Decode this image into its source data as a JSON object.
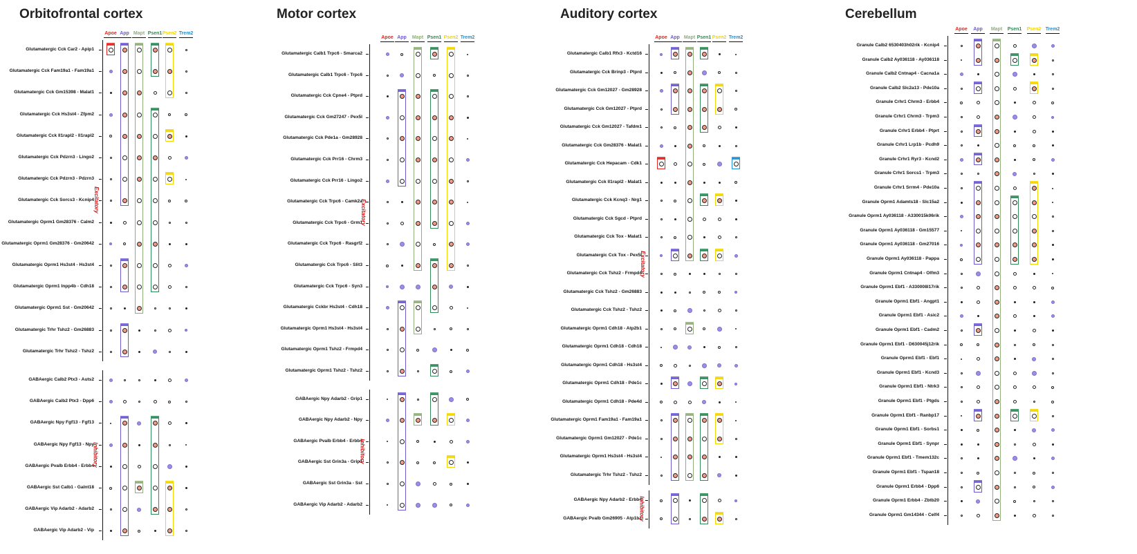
{
  "genes": [
    "Apoe",
    "App",
    "Mapt",
    "Psen1",
    "Psen2",
    "Trem2"
  ],
  "gene_colors": {
    "Apoe": "#e0261f",
    "App": "#6a5acd",
    "Mapt": "#8fae7a",
    "Psen1": "#2e8b57",
    "Psen2": "#f2d600",
    "Trem2": "#1f8fd6"
  },
  "chart_data": [
    {
      "type": "dot-matrix",
      "title": "Orbitofrontal cortex",
      "columns": [
        "Apoe",
        "App",
        "Mapt",
        "Psen1",
        "Psen2",
        "Trem2"
      ],
      "groups": [
        {
          "label": "Excitatory",
          "rows": [
            "Glutamatergic Cck Car2 - Apip1",
            "Glutamatergic Cck Fam19a1 - Fam19a1",
            "Glutamatergic Cck Gm15398 - Malat1",
            "Glutamatergic Cck Hs3st4 - Zfpm2",
            "Glutamatergic Cck Il1rapl2 - Il1rapl2",
            "Glutamatergic Cck Pdzrn3 - Lingo2",
            "Glutamatergic Cck Pdzrn3 - Pdzrn3",
            "Glutamatergic Cck Sorcs3 - Kcnip4",
            "Glutamatergic Oprm1 Gm28376 - Calm2",
            "Glutamatergic Oprm1 Gm28376 - Gm20642",
            "Glutamatergic Oprm1 Hs3st4 - Hs3st4",
            "Glutamatergic Oprm1 Inpp4b - Cdh18",
            "Glutamatergic Oprm1 Sst - Gm20642",
            "Glutamatergic Trhr Tshz2 - Gm26883",
            "Glutamatergic Trhr Tshz2 - Tshz2"
          ]
        },
        {
          "label": "Inhibitory",
          "rows": [
            "GABAergic Calb2 Ptx3 - Auts2",
            "GABAergic Calb2 Ptx3 - Dpp6",
            "GABAergic Npy Fgf13 - Fgf13",
            "GABAergic Npy Fgf13 - Npy",
            "GABAergic Pvalb Erbb4 - Erbb4",
            "GABAergic Sst Calb1 - Galnt18",
            "GABAergic Vip Adarb2 - Adarb2",
            "GABAergic Vip Adarb2 - Vip"
          ]
        }
      ],
      "highlights": [
        {
          "gene": "Apoe",
          "from": 0,
          "to": 0
        },
        {
          "gene": "App",
          "from": 0,
          "to": 7
        },
        {
          "gene": "Mapt",
          "from": 0,
          "to": 12
        },
        {
          "gene": "Psen1",
          "from": 0,
          "to": 1
        },
        {
          "gene": "Psen1",
          "from": 3,
          "to": 11
        },
        {
          "gene": "Psen2",
          "from": 0,
          "to": 2
        },
        {
          "gene": "Psen2",
          "from": 6,
          "to": 6
        },
        {
          "gene": "Psen2",
          "from": 4,
          "to": 4
        },
        {
          "gene": "App",
          "from": 10,
          "to": 11
        },
        {
          "gene": "App",
          "from": 13,
          "to": 14
        },
        {
          "gene": "App",
          "from": 17,
          "to": 22
        },
        {
          "gene": "Psen1",
          "from": 17,
          "to": 21
        },
        {
          "gene": "Mapt",
          "from": 20,
          "to": 20
        },
        {
          "gene": "Psen2",
          "from": 20,
          "to": 22
        }
      ]
    },
    {
      "type": "dot-matrix",
      "title": "Motor cortex",
      "columns": [
        "Apoe",
        "App",
        "Mapt",
        "Psen1",
        "Psen2",
        "Trem2"
      ],
      "groups": [
        {
          "label": "Excitatory",
          "rows": [
            "Glutamatergic Calb1 Trpc6 - Smarca2",
            "Glutamatergic Calb1 Trpc6 - Trpc6",
            "Glutamatergic Cck Cpne4 - Ptprd",
            "Glutamatergic Cck Gm27247 - Pex5l",
            "Glutamatergic Cck Pde1a - Gm28928",
            "Glutamatergic Cck Prr16 - Chrm3",
            "Glutamatergic Cck Prr16 - Lingo2",
            "Glutamatergic Cck Trpc6 - Camk2a",
            "Glutamatergic Cck Trpc6 - Grm1",
            "Glutamatergic Cck Trpc6 - Rasgrf2",
            "Glutamatergic Cck Trpc6 - Slit3",
            "Glutamatergic Cck Trpc6 - Syn3",
            "Glutamatergic Cckbr Hs3st4 - Cdh18",
            "Glutamatergic Oprm1 Hs3st4 - Hs3st4",
            "Glutamatergic Oprm1 Tshz2 - Frmpd4",
            "Glutamatergic Oprm1 Tshz2 - Tshz2"
          ]
        },
        {
          "label": "Inhibitory",
          "rows": [
            "GABAergic Npy Adarb2 - Grip1",
            "GABAergic Npy Adarb2 - Npy",
            "GABAergic Pvalb Erbb4 - Erbb4",
            "GABAergic Sst Grin3a - Grip1",
            "GABAergic Sst Grin3a - Sst",
            "GABAergic Vip Adarb2 - Adarb2"
          ]
        }
      ],
      "highlights": [
        {
          "gene": "Mapt",
          "from": 0,
          "to": 10
        },
        {
          "gene": "Psen1",
          "from": 0,
          "to": 0
        },
        {
          "gene": "Psen2",
          "from": 0,
          "to": 10
        },
        {
          "gene": "App",
          "from": 2,
          "to": 6
        },
        {
          "gene": "Psen1",
          "from": 2,
          "to": 8
        },
        {
          "gene": "Psen1",
          "from": 10,
          "to": 12
        },
        {
          "gene": "App",
          "from": 12,
          "to": 15
        },
        {
          "gene": "Mapt",
          "from": 12,
          "to": 13
        },
        {
          "gene": "Psen1",
          "from": 15,
          "to": 15
        },
        {
          "gene": "App",
          "from": 16,
          "to": 21
        },
        {
          "gene": "Psen1",
          "from": 16,
          "to": 17
        },
        {
          "gene": "Mapt",
          "from": 17,
          "to": 17
        },
        {
          "gene": "Psen2",
          "from": 17,
          "to": 17
        },
        {
          "gene": "Psen2",
          "from": 19,
          "to": 19
        }
      ]
    },
    {
      "type": "dot-matrix",
      "title": "Auditory cortex",
      "columns": [
        "Apoe",
        "App",
        "Mapt",
        "Psen1",
        "Psen2",
        "Trem2"
      ],
      "groups": [
        {
          "label": "Excitatory",
          "rows": [
            "Glutamatergic Calb1 Rfx3 - Kctd16",
            "Glutamatergic Cck Brinp3 - Ptprd",
            "Glutamatergic Cck Gm12027 - Gm28928",
            "Glutamatergic Cck Gm12027 - Ptprd",
            "Glutamatergic Cck Gm12027 - Tafdm1",
            "Glutamatergic Cck Gm28376 - Malat1",
            "Glutamatergic Cck Hepacam - Cdk1",
            "Glutamatergic Cck Il1rapl2 - Malat1",
            "Glutamatergic Cck Kcnq3 - Nrg1",
            "Glutamatergic Cck Sgcd - Ptprd",
            "Glutamatergic Cck Tox - Malat1",
            "Glutamatergic Cck Tox - Pex5l",
            "Glutamatergic Cck Tshz2 - Frmpd4",
            "Glutamatergic Cck Tshz2 - Gm26883",
            "Glutamatergic Cck Tshz2 - Tshz2",
            "Glutamatergic Oprm1 Cdh18 - Atp2b1",
            "Glutamatergic Oprm1 Cdh18 - Cdh18",
            "Glutamatergic Oprm1 Cdh18 - Hs3st4",
            "Glutamatergic Oprm1 Cdh18 - Pde1c",
            "Glutamatergic Oprm1 Cdh18 - Pde4d",
            "Glutamatergic Oprm1 Fam19a1 - Fam19a1",
            "Glutamatergic Oprm1 Gm12027 - Pde1c",
            "Glutamatergic Oprm1 Hs3st4 - Hs3st4",
            "Glutamatergic Trhr Tshz2 - Tshz2"
          ]
        },
        {
          "label": "Inhibitory",
          "rows": [
            "GABAergic Npy Adarb2 - Erbb4",
            "GABAergic Pvalb Gm26905 - Atp1b1"
          ]
        }
      ],
      "highlights": [
        {
          "gene": "App",
          "from": 0,
          "to": 0
        },
        {
          "gene": "Mapt",
          "from": 0,
          "to": 11
        },
        {
          "gene": "Psen1",
          "from": 0,
          "to": 0
        },
        {
          "gene": "App",
          "from": 2,
          "to": 3
        },
        {
          "gene": "Psen1",
          "from": 2,
          "to": 4
        },
        {
          "gene": "Psen2",
          "from": 2,
          "to": 3
        },
        {
          "gene": "Apoe",
          "from": 6,
          "to": 6
        },
        {
          "gene": "Trem2",
          "from": 6,
          "to": 6
        },
        {
          "gene": "Psen1",
          "from": 8,
          "to": 8
        },
        {
          "gene": "Psen2",
          "from": 8,
          "to": 8
        },
        {
          "gene": "App",
          "from": 11,
          "to": 11
        },
        {
          "gene": "Psen1",
          "from": 11,
          "to": 11
        },
        {
          "gene": "Psen2",
          "from": 11,
          "to": 11
        },
        {
          "gene": "Mapt",
          "from": 15,
          "to": 15
        },
        {
          "gene": "App",
          "from": 18,
          "to": 18
        },
        {
          "gene": "Psen1",
          "from": 18,
          "to": 18
        },
        {
          "gene": "Psen2",
          "from": 18,
          "to": 18
        },
        {
          "gene": "App",
          "from": 20,
          "to": 23
        },
        {
          "gene": "Mapt",
          "from": 20,
          "to": 23
        },
        {
          "gene": "Psen1",
          "from": 20,
          "to": 23
        },
        {
          "gene": "Psen2",
          "from": 20,
          "to": 21
        },
        {
          "gene": "App",
          "from": 24,
          "to": 25
        },
        {
          "gene": "Psen1",
          "from": 24,
          "to": 25
        },
        {
          "gene": "Psen2",
          "from": 25,
          "to": 25
        }
      ]
    },
    {
      "type": "dot-matrix",
      "title": "Cerebellum",
      "columns": [
        "Apoe",
        "App",
        "Mapt",
        "Psen1",
        "Psen2",
        "Trem2"
      ],
      "groups": [
        {
          "label": "",
          "rows": [
            "Granule Calb2 6530403h02rik - Kcnip4",
            "Granule Calb2 Ay036118 - Ay036118",
            "Granule Calb2 Cntnap4 - Cacna1a",
            "Granule Calb2 Slc2a13 - Pde10a",
            "Granule Crhr1 Chrm3 - Erbb4",
            "Granule Crhr1 Chrm3 - Trpm3",
            "Granule Crhr1 Erbb4 - Ptprt",
            "Granule Crhr1 Lrp1b - Pcdh9",
            "Granule Crhr1 Ryr3 - Kcnd2",
            "Granule Crhr1 Sorcs1 - Trpm3",
            "Granule Crhr1 Srrm4 - Pde10a",
            "Granule Oprm1 Adamts18 - Slc15a2",
            "Granule Oprm1 Ay036118 - A330015k06rik",
            "Granule Oprm1 Ay036118 - Gm15577",
            "Granule Oprm1 Ay036118 - Gm27016",
            "Granule Oprm1 Ay036118 - Pappa",
            "Granule Oprm1 Cntnap4 - Olfm3",
            "Granule Oprm1 Ebf1 - A330008l17rik",
            "Granule Oprm1 Ebf1 - Angpt1",
            "Granule Oprm1 Ebf1 - Asic2",
            "Granule Oprm1 Ebf1 - Cadm2",
            "Granule Oprm1 Ebf1 - D630045j12rik",
            "Granule Oprm1 Ebf1 - Ebf1",
            "Granule Oprm1 Ebf1 - Kcnd3",
            "Granule Oprm1 Ebf1 - Ntrk3",
            "Granule Oprm1 Ebf1 - Ptgds",
            "Granule Oprm1 Ebf1 - Ranbp17",
            "Granule Oprm1 Ebf1 - Sorbs1",
            "Granule Oprm1 Ebf1 - Synpr",
            "Granule Oprm1 Ebf1 - Tmem132c",
            "Granule Oprm1 Ebf1 - Tspan18",
            "Granule Oprm1 Erbb4 - Dpp6",
            "Granule Oprm1 Erbb4 - Zbtb20",
            "Granule Oprm1 Gm14344 - Celf4"
          ]
        }
      ],
      "highlights": [
        {
          "gene": "App",
          "from": 0,
          "to": 1
        },
        {
          "gene": "Mapt",
          "from": 0,
          "to": 33
        },
        {
          "gene": "Psen1",
          "from": 1,
          "to": 1
        },
        {
          "gene": "Psen2",
          "from": 1,
          "to": 1
        },
        {
          "gene": "App",
          "from": 3,
          "to": 3
        },
        {
          "gene": "Psen2",
          "from": 3,
          "to": 3
        },
        {
          "gene": "App",
          "from": 6,
          "to": 6
        },
        {
          "gene": "App",
          "from": 8,
          "to": 8
        },
        {
          "gene": "App",
          "from": 10,
          "to": 15
        },
        {
          "gene": "Psen1",
          "from": 11,
          "to": 15
        },
        {
          "gene": "Psen2",
          "from": 10,
          "to": 15
        },
        {
          "gene": "App",
          "from": 20,
          "to": 20
        },
        {
          "gene": "App",
          "from": 26,
          "to": 26
        },
        {
          "gene": "Psen1",
          "from": 26,
          "to": 26
        },
        {
          "gene": "Psen2",
          "from": 26,
          "to": 26
        },
        {
          "gene": "App",
          "from": 31,
          "to": 31
        }
      ]
    }
  ]
}
